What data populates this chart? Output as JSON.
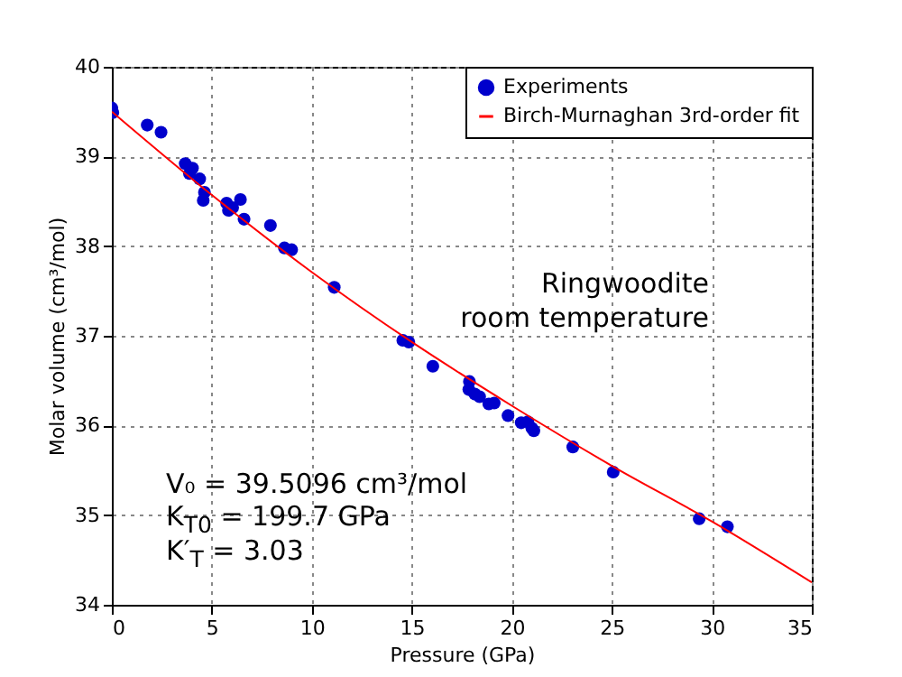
{
  "chart_data": {
    "type": "scatter",
    "xlabel": "Pressure (GPa)",
    "ylabel": "Molar volume (cm³/mol)",
    "xlim": [
      0,
      35
    ],
    "xticks": [
      0,
      5,
      10,
      15,
      20,
      25,
      30,
      35
    ],
    "ylim": [
      34,
      40
    ],
    "yticks": [
      34,
      35,
      36,
      37,
      38,
      39,
      40
    ],
    "grid": true,
    "legend": "top right",
    "marker": "circle",
    "annotations": [
      "Ringwoodite",
      "room temperature",
      "V₀ = 39.5096 cm³/mol",
      "K$_{T0}$ = 199.7 GPa",
      "K′$_{T}$ = 3.03"
    ],
    "series": [
      {
        "name": "Experiments",
        "color": "#0000cc",
        "x": [
          0,
          0.05,
          1.77,
          2.46,
          3.67,
          4.03,
          3.88,
          4.39,
          4.63,
          4.57,
          5.74,
          5.83,
          6.04,
          6.43,
          6.61,
          7.93,
          8.63,
          8.99,
          11.12,
          14.55,
          14.85,
          16.05,
          17.88,
          17.85,
          18.15,
          18.39,
          18.85,
          19.12,
          19.81,
          20.47,
          20.8,
          21.1,
          21.0,
          23.05,
          25.07,
          29.37,
          30.78
        ],
        "values": [
          39.54,
          39.49,
          39.35,
          39.27,
          38.92,
          38.87,
          38.81,
          38.75,
          38.6,
          38.51,
          38.48,
          38.4,
          38.43,
          38.52,
          38.3,
          38.23,
          37.98,
          37.96,
          37.54,
          36.95,
          36.93,
          36.66,
          36.49,
          36.4,
          36.35,
          36.32,
          36.24,
          36.25,
          36.11,
          36.03,
          36.04,
          35.94,
          35.97,
          35.76,
          35.48,
          34.96,
          34.87
        ]
      },
      {
        "name": "Birch-Murnaghan 3rd-order fit",
        "type": "line",
        "marker": "none",
        "color": "#ff0000",
        "x": [
          0,
          5,
          10,
          15,
          20,
          25,
          30,
          35
        ],
        "values": [
          39.5,
          38.57,
          37.71,
          36.93,
          36.22,
          35.55,
          34.93,
          34.25
        ]
      }
    ]
  }
}
